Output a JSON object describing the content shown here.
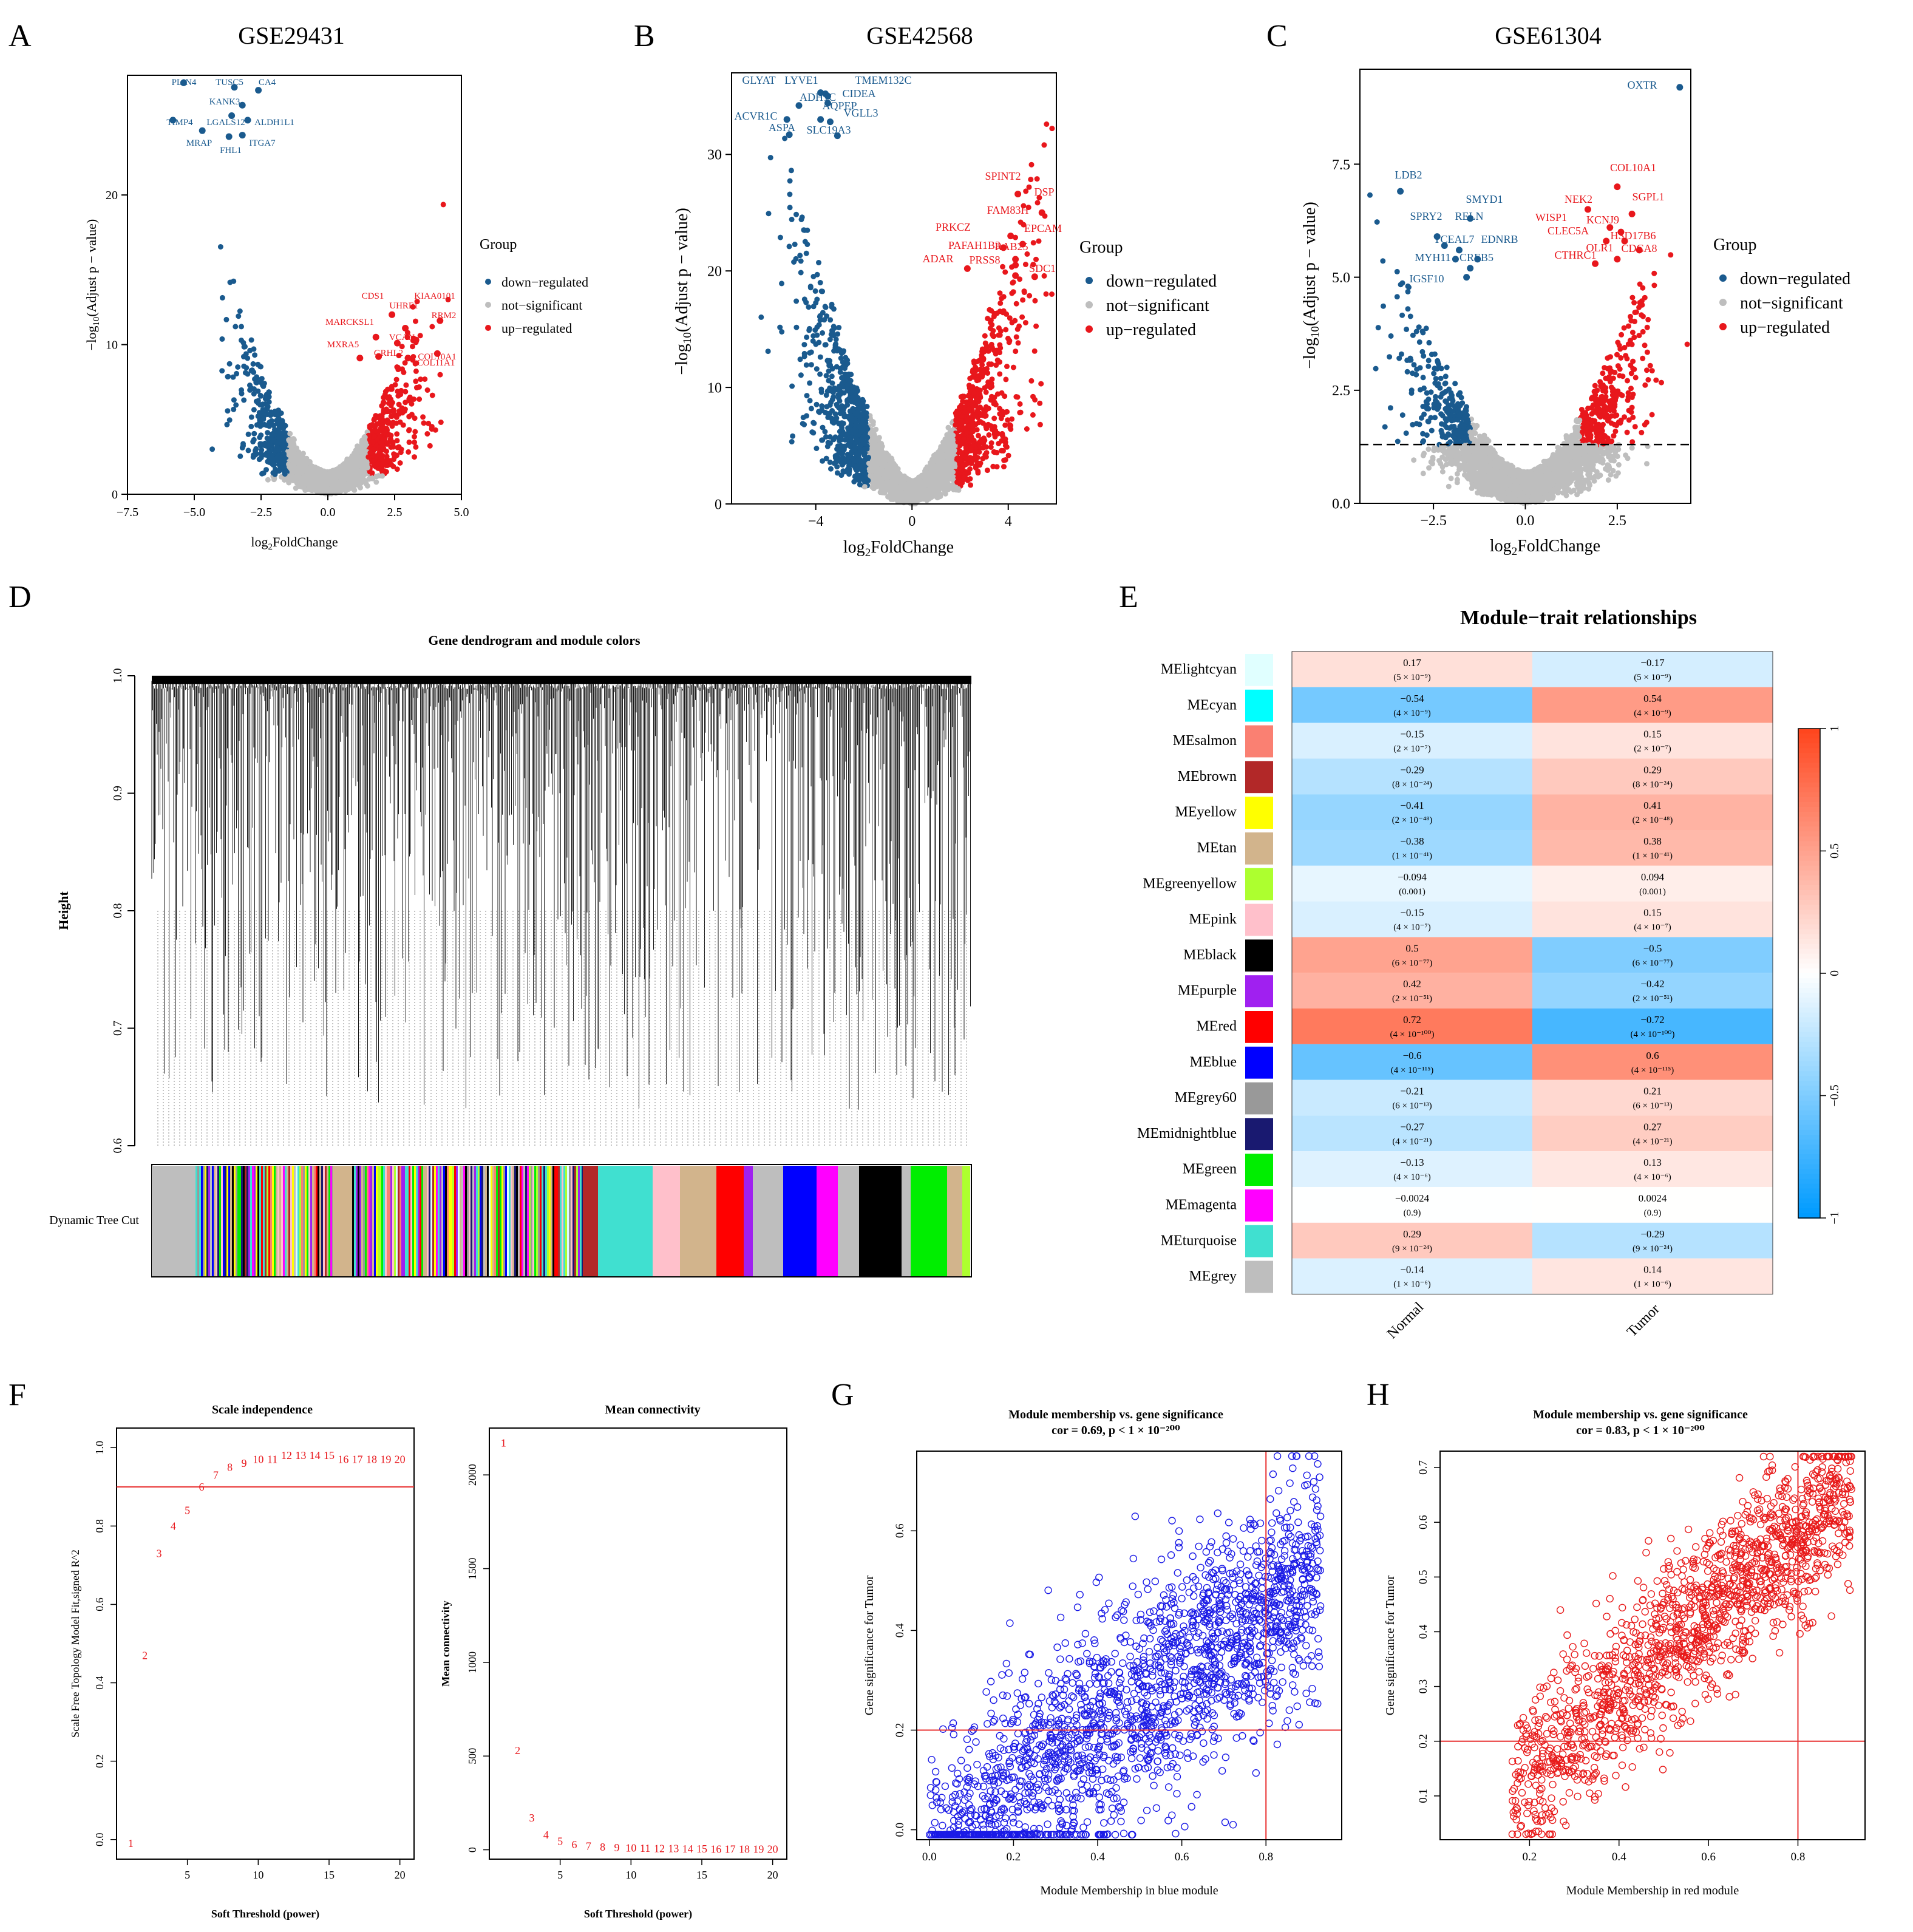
{
  "colors": {
    "down": "#1a5a8e",
    "ns": "#bebebe",
    "up": "#e8171c",
    "blue_pts": "#1a1ae6",
    "red_pts": "#e81a1a",
    "ref_line": "#e83030"
  },
  "panel_letters": [
    "A",
    "B",
    "C",
    "D",
    "E",
    "F",
    "G",
    "H"
  ],
  "legend": {
    "title": "Group",
    "items": [
      "down−regulated",
      "not−significant",
      "up−regulated"
    ]
  },
  "chart_data": [
    {
      "id": "A",
      "type": "scatter",
      "title": "GSE29431",
      "xlabel": "log2FoldChange",
      "ylabel": "−log10(Adjust p − value)",
      "xlim": [
        -7.5,
        5.0
      ],
      "ylim": [
        0,
        28
      ],
      "xticks": [
        "−7.5",
        "−5.0",
        "−2.5",
        "0.0",
        "2.5",
        "5.0"
      ],
      "yticks": [
        "0",
        "10",
        "20"
      ],
      "point_count": 2400,
      "down_labels": [
        "PLIN4",
        "TUSC5",
        "CA4",
        "KANK3",
        "TIMP4",
        "LGALS12",
        "ALDH1L1",
        "MRAP",
        "FHL1",
        "ITGA7"
      ],
      "up_labels": [
        "CDS1",
        "KIAA0101",
        "UHRF1",
        "MARCKSL1",
        "RRM2",
        "VCAN",
        "MXRA5",
        "GRHL2",
        "COL10A1",
        "COL11A1"
      ]
    },
    {
      "id": "B",
      "type": "scatter",
      "title": "GSE42568",
      "xlabel": "log2FoldChange",
      "ylabel": "−log10(Adjust p − value)",
      "xlim": [
        -7.5,
        6
      ],
      "ylim": [
        0,
        37
      ],
      "xticks": [
        "−4",
        "0",
        "4"
      ],
      "yticks": [
        "0",
        "10",
        "20",
        "30"
      ],
      "point_count": 3200,
      "down_labels": [
        "GLYAT",
        "LYVE1",
        "TMEM132C",
        "ADH1C",
        "CIDEA",
        "AQPEP",
        "ACVR1C",
        "VGLL3",
        "ASPA",
        "SLC19A3"
      ],
      "up_labels": [
        "SPINT2",
        "DSP",
        "FAM83H",
        "PRKCZ",
        "EPCAM",
        "PAFAH1B3",
        "RAB25",
        "ADAR",
        "PRSS8",
        "SDC1"
      ]
    },
    {
      "id": "C",
      "type": "scatter",
      "title": "GSE61304",
      "xlabel": "log2FoldChange",
      "ylabel": "−log10(Adjust p − value)",
      "xlim": [
        -4.5,
        4.5
      ],
      "ylim": [
        0,
        9.6
      ],
      "xticks": [
        "−2.5",
        "0.0",
        "2.5"
      ],
      "yticks": [
        "0.0",
        "2.5",
        "5.0",
        "7.5"
      ],
      "threshold": 1.3,
      "point_count": 3200,
      "down_labels": [
        "OXTR",
        "LDB2",
        "SMYD1",
        "SPRY2",
        "RELN",
        "TCEAL7",
        "EDNRB",
        "MYH11",
        "CREB5",
        "IGSF10"
      ],
      "up_labels": [
        "COL10A1",
        "SGPL1",
        "NEK2",
        "WISP1",
        "KCNJ9",
        "CLEC5A",
        "HSD17B6",
        "CDCA8",
        "CTHRC1",
        "OLR1"
      ]
    },
    {
      "id": "D",
      "type": "dendrogram",
      "title": "Gene dendrogram and module colors",
      "ylabel": "Height",
      "ylim": [
        0.6,
        1.0
      ],
      "yticks": [
        "0.6",
        "0.7",
        "0.8",
        "0.9",
        "1.0"
      ],
      "color_bar_label": "Dynamic Tree Cut"
    },
    {
      "id": "E",
      "type": "heatmap",
      "title": "Module−trait relationships",
      "columns": [
        "Normal",
        "Tumor"
      ],
      "colorbar_ticks": [
        "1",
        "0.5",
        "0",
        "−0.5",
        "−1"
      ],
      "rows": [
        {
          "module": "MElightcyan",
          "color": "#e0ffff",
          "normal": {
            "r": "0.17",
            "r_value": 0.17,
            "p": "(5 × 10⁻⁹)"
          },
          "tumor": {
            "r": "−0.17",
            "r_value": -0.17,
            "p": "(5 × 10⁻⁹)"
          }
        },
        {
          "module": "MEcyan",
          "color": "#00ffff",
          "normal": {
            "r": "−0.54",
            "r_value": -0.54,
            "p": "(4 × 10⁻⁹)"
          },
          "tumor": {
            "r": "0.54",
            "r_value": 0.54,
            "p": "(4 × 10⁻⁹)"
          }
        },
        {
          "module": "MEsalmon",
          "color": "#fa8072",
          "normal": {
            "r": "−0.15",
            "r_value": -0.15,
            "p": "(2 × 10⁻⁷)"
          },
          "tumor": {
            "r": "0.15",
            "r_value": 0.15,
            "p": "(2 × 10⁻⁷)"
          }
        },
        {
          "module": "MEbrown",
          "color": "#b22828",
          "normal": {
            "r": "−0.29",
            "r_value": -0.29,
            "p": "(8 × 10⁻²⁴)"
          },
          "tumor": {
            "r": "0.29",
            "r_value": 0.29,
            "p": "(8 × 10⁻²⁴)"
          }
        },
        {
          "module": "MEyellow",
          "color": "#ffff00",
          "normal": {
            "r": "−0.41",
            "r_value": -0.41,
            "p": "(2 × 10⁻⁴⁸)"
          },
          "tumor": {
            "r": "0.41",
            "r_value": 0.41,
            "p": "(2 × 10⁻⁴⁸)"
          }
        },
        {
          "module": "MEtan",
          "color": "#d2b48c",
          "normal": {
            "r": "−0.38",
            "r_value": -0.38,
            "p": "(1 × 10⁻⁴¹)"
          },
          "tumor": {
            "r": "0.38",
            "r_value": 0.38,
            "p": "(1 × 10⁻⁴¹)"
          }
        },
        {
          "module": "MEgreenyellow",
          "color": "#adff2f",
          "normal": {
            "r": "−0.094",
            "r_value": -0.094,
            "p": "(0.001)"
          },
          "tumor": {
            "r": "0.094",
            "r_value": 0.094,
            "p": "(0.001)"
          }
        },
        {
          "module": "MEpink",
          "color": "#ffc0cb",
          "normal": {
            "r": "−0.15",
            "r_value": -0.15,
            "p": "(4 × 10⁻⁷)"
          },
          "tumor": {
            "r": "0.15",
            "r_value": 0.15,
            "p": "(4 × 10⁻⁷)"
          }
        },
        {
          "module": "MEblack",
          "color": "#000000",
          "normal": {
            "r": "0.5",
            "r_value": 0.5,
            "p": "(6 × 10⁻⁷⁷)"
          },
          "tumor": {
            "r": "−0.5",
            "r_value": -0.5,
            "p": "(6 × 10⁻⁷⁷)"
          }
        },
        {
          "module": "MEpurple",
          "color": "#a020f0",
          "normal": {
            "r": "0.42",
            "r_value": 0.42,
            "p": "(2 × 10⁻⁵¹)"
          },
          "tumor": {
            "r": "−0.42",
            "r_value": -0.42,
            "p": "(2 × 10⁻⁵¹)"
          }
        },
        {
          "module": "MEred",
          "color": "#ff0000",
          "normal": {
            "r": "0.72",
            "r_value": 0.72,
            "p": "(4 × 10⁻¹⁰⁰)"
          },
          "tumor": {
            "r": "−0.72",
            "r_value": -0.72,
            "p": "(4 × 10⁻¹⁰⁰)"
          }
        },
        {
          "module": "MEblue",
          "color": "#0000ff",
          "normal": {
            "r": "−0.6",
            "r_value": -0.6,
            "p": "(4 × 10⁻¹¹⁵)"
          },
          "tumor": {
            "r": "0.6",
            "r_value": 0.6,
            "p": "(4 × 10⁻¹¹⁵)"
          }
        },
        {
          "module": "MEgrey60",
          "color": "#999999",
          "normal": {
            "r": "−0.21",
            "r_value": -0.21,
            "p": "(6 × 10⁻¹³)"
          },
          "tumor": {
            "r": "0.21",
            "r_value": 0.21,
            "p": "(6 × 10⁻¹³)"
          }
        },
        {
          "module": "MEmidnightblue",
          "color": "#191970",
          "normal": {
            "r": "−0.27",
            "r_value": -0.27,
            "p": "(4 × 10⁻²¹)"
          },
          "tumor": {
            "r": "0.27",
            "r_value": 0.27,
            "p": "(4 × 10⁻²¹)"
          }
        },
        {
          "module": "MEgreen",
          "color": "#00ee00",
          "normal": {
            "r": "−0.13",
            "r_value": -0.13,
            "p": "(4 × 10⁻⁶)"
          },
          "tumor": {
            "r": "0.13",
            "r_value": 0.13,
            "p": "(4 × 10⁻⁶)"
          }
        },
        {
          "module": "MEmagenta",
          "color": "#ff00ff",
          "normal": {
            "r": "−0.0024",
            "r_value": -0.0024,
            "p": "(0.9)"
          },
          "tumor": {
            "r": "0.0024",
            "r_value": 0.0024,
            "p": "(0.9)"
          }
        },
        {
          "module": "MEturquoise",
          "color": "#40e0d0",
          "normal": {
            "r": "0.29",
            "r_value": 0.29,
            "p": "(9 × 10⁻²⁴)"
          },
          "tumor": {
            "r": "−0.29",
            "r_value": -0.29,
            "p": "(9 × 10⁻²⁴)"
          }
        },
        {
          "module": "MEgrey",
          "color": "#bebebe",
          "normal": {
            "r": "−0.14",
            "r_value": -0.14,
            "p": "(1 × 10⁻⁶)"
          },
          "tumor": {
            "r": "0.14",
            "r_value": 0.14,
            "p": "(1 × 10⁻⁶)"
          }
        }
      ]
    },
    {
      "id": "F1",
      "type": "scatter",
      "title": "Scale independence",
      "xlabel": "Soft Threshold (power)",
      "ylabel": "Scale Free Topology Model Fit,signed R^2",
      "xlim": [
        0,
        21
      ],
      "ylim": [
        -0.05,
        1.05
      ],
      "xticks": [
        "5",
        "10",
        "15",
        "20"
      ],
      "yticks": [
        "0.0",
        "0.2",
        "0.4",
        "0.6",
        "0.8",
        "1.0"
      ],
      "hline": 0.9,
      "x": [
        1,
        2,
        3,
        4,
        5,
        6,
        7,
        8,
        9,
        10,
        11,
        12,
        13,
        14,
        15,
        16,
        17,
        18,
        19,
        20
      ],
      "y": [
        -0.01,
        0.47,
        0.73,
        0.8,
        0.84,
        0.9,
        0.93,
        0.95,
        0.96,
        0.97,
        0.97,
        0.98,
        0.98,
        0.98,
        0.98,
        0.97,
        0.97,
        0.97,
        0.97,
        0.97
      ]
    },
    {
      "id": "F2",
      "type": "scatter",
      "title": "Mean connectivity",
      "xlabel": "Soft Threshold (power)",
      "ylabel": "Mean connectivity",
      "xlim": [
        0,
        21
      ],
      "ylim": [
        -50,
        2250
      ],
      "xticks": [
        "5",
        "10",
        "15",
        "20"
      ],
      "yticks": [
        "0",
        "500",
        "1000",
        "1500",
        "2000"
      ],
      "x": [
        1,
        2,
        3,
        4,
        5,
        6,
        7,
        8,
        9,
        10,
        11,
        12,
        13,
        14,
        15,
        16,
        17,
        18,
        19,
        20
      ],
      "y": [
        2170,
        530,
        170,
        80,
        45,
        28,
        20,
        15,
        12,
        10,
        8,
        7,
        6,
        5,
        5,
        4,
        4,
        3,
        3,
        3
      ]
    },
    {
      "id": "G",
      "type": "scatter",
      "title": "Module membership vs. gene significance",
      "subtitle": "cor = 0.69, p < 1 × 10⁻²⁰⁰",
      "xlabel": "Module Membership in blue module",
      "ylabel": "Gene significance for  Tumor",
      "xlim": [
        -0.03,
        0.98
      ],
      "ylim": [
        -0.02,
        0.76
      ],
      "xticks": [
        "0.0",
        "0.2",
        "0.4",
        "0.6",
        "0.8"
      ],
      "yticks": [
        "0.0",
        "0.2",
        "0.4",
        "0.6"
      ],
      "vline": 0.8,
      "hline": 0.2,
      "cor": 0.69,
      "point_count": 2000
    },
    {
      "id": "H",
      "type": "scatter",
      "title": "Module membership vs. gene significance",
      "subtitle": "cor = 0.83, p < 1 × 10⁻²⁰⁰",
      "xlabel": "Module Membership in red module",
      "ylabel": "Gene significance for  Tumor",
      "xlim": [
        0.0,
        0.95
      ],
      "ylim": [
        0.02,
        0.73
      ],
      "xticks": [
        "0.2",
        "0.4",
        "0.6",
        "0.8"
      ],
      "yticks": [
        "0.1",
        "0.2",
        "0.3",
        "0.4",
        "0.5",
        "0.6",
        "0.7"
      ],
      "vline": 0.8,
      "hline": 0.2,
      "cor": 0.83,
      "point_count": 1500
    }
  ]
}
